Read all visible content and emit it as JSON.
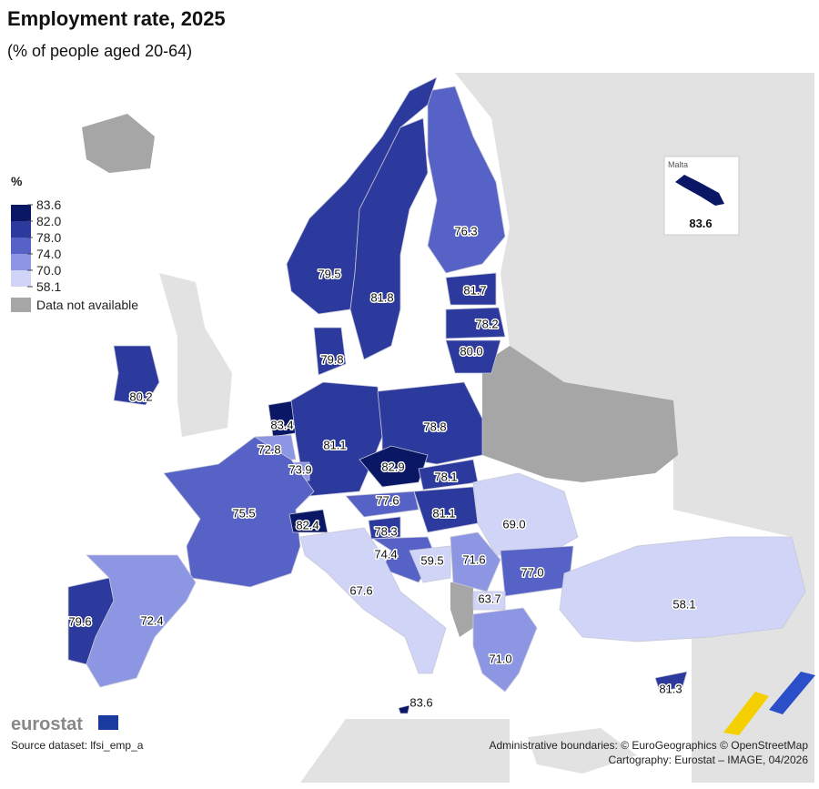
{
  "header": {
    "title": "Employment rate, 2025",
    "subtitle": "(% of people aged 20-64)"
  },
  "legend": {
    "title": "%",
    "breaks": [
      83.6,
      {
        "value": 82,
        "label": "82.0"
      },
      {
        "value": 78,
        "label": "78.0"
      },
      {
        "value": 74,
        "label": "74.0"
      },
      {
        "value": 70,
        "label": "70.0"
      },
      58.1
    ],
    "colors": [
      "#0a1764",
      "#2c3a9e",
      "#5662c6",
      "#8d96e2",
      "#d0d4f6"
    ],
    "no_data_label": "Data not available",
    "no_data_color": "#a6a6a6"
  },
  "regions": {
    "values": [
      76.3,
      79.5,
      81.8,
      81.7,
      78.2,
      80,
      79.8,
      80.2,
      83.4,
      81.1,
      78.8,
      72.8,
      73.9,
      82.9,
      78.1,
      75.5,
      77.6,
      81.1,
      82.4,
      69,
      78.3,
      74.4,
      59.5,
      71.6,
      77,
      63.7,
      67.6,
      58.1,
      79.6,
      72.4,
      71,
      81.3,
      83.6
    ],
    "value_labels": [
      "76.3",
      "79.5",
      "81.8",
      "81.7",
      "78.2",
      "80.0",
      "79.8",
      "80.2",
      "83.4",
      "81.1",
      "78.8",
      "72.8",
      "73.9",
      "82.9",
      "78.1",
      "75.5",
      "77.6",
      "81.1",
      "82.4",
      "69.0",
      "78.3",
      "74.4",
      "59.5",
      "71.6",
      "77.0",
      "63.7",
      "67.6",
      "58.1",
      "79.6",
      "72.4",
      "71.0",
      "81.3",
      "83.6"
    ]
  },
  "inset": {
    "title": "Malta"
  },
  "footer": {
    "logo": "eurostat",
    "source": "Source dataset: lfsi_emp_a",
    "boundaries": "Administrative boundaries: © EuroGeographics © OpenStreetMap",
    "cartography": "Cartography: Eurostat – IMAGE, 04/2026"
  }
}
